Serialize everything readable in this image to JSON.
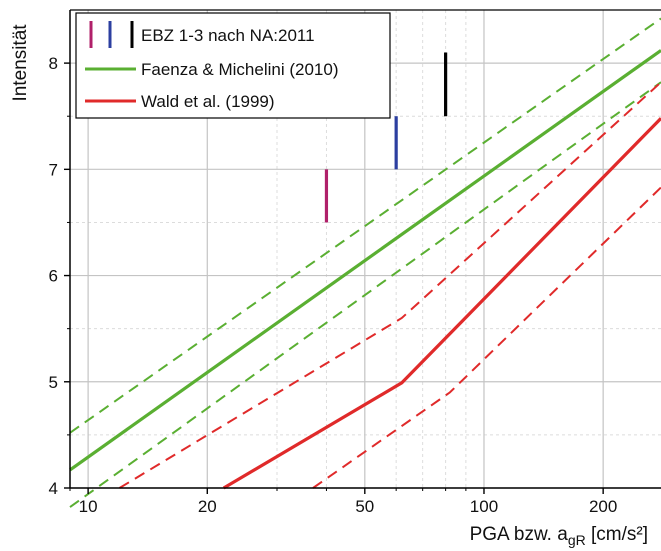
{
  "chart_data": {
    "type": "line",
    "xscale": "log",
    "xlim": [
      9,
      280
    ],
    "ylim": [
      4,
      8.5
    ],
    "xlabel": "PGA bzw. a",
    "xlabel_sub": "gR",
    "xlabel_unit": " [cm/s²]",
    "ylabel": "Intensität",
    "xticks": [
      10,
      20,
      50,
      100,
      200
    ],
    "xtick_labels": [
      "10",
      "20",
      "50",
      "100",
      "200"
    ],
    "yticks": [
      4,
      5,
      6,
      7,
      8
    ],
    "ytick_labels": [
      "4",
      "5",
      "6",
      "7",
      "8"
    ],
    "grid": true,
    "legend_position": "top-left",
    "legend": [
      {
        "label": "EBZ 1-3 nach NA:2011",
        "kind": "bars"
      },
      {
        "label": "Faenza & Michelini (2010)",
        "kind": "line",
        "color": "#5aaf32"
      },
      {
        "label": "Wald et al. (1999)",
        "kind": "line",
        "color": "#e02a2a"
      }
    ],
    "series": [
      {
        "name": "Faenza & Michelini (2010)",
        "color": "#5aaf32",
        "dash": false,
        "points": [
          [
            9,
            4.17
          ],
          [
            280,
            8.12
          ]
        ]
      },
      {
        "name": "",
        "color": "#5aaf32",
        "dash": true,
        "points": [
          [
            9,
            4.52
          ],
          [
            280,
            8.42
          ]
        ]
      },
      {
        "name": "",
        "color": "#5aaf32",
        "dash": true,
        "points": [
          [
            9,
            3.82
          ],
          [
            280,
            7.82
          ]
        ]
      },
      {
        "name": "Wald et al. (1999)",
        "color": "#e02a2a",
        "dash": false,
        "points": [
          [
            22,
            4.0
          ],
          [
            62,
            4.99
          ],
          [
            280,
            7.48
          ]
        ]
      },
      {
        "name": "",
        "color": "#e02a2a",
        "dash": true,
        "points": [
          [
            12,
            4.0
          ],
          [
            62,
            5.6
          ],
          [
            280,
            7.82
          ]
        ]
      },
      {
        "name": "",
        "color": "#e02a2a",
        "dash": true,
        "points": [
          [
            37,
            4.0
          ],
          [
            82,
            4.9
          ],
          [
            280,
            6.83
          ]
        ]
      }
    ],
    "bars": [
      {
        "name": "EBZ 1",
        "x": 40,
        "y_low": 6.5,
        "y_high": 7.0,
        "color": "#b0206a"
      },
      {
        "name": "EBZ 2",
        "x": 60,
        "y_low": 7.0,
        "y_high": 7.5,
        "color": "#2c3fa0"
      },
      {
        "name": "EBZ 3",
        "x": 80,
        "y_low": 7.5,
        "y_high": 8.1,
        "color": "#000000"
      }
    ]
  }
}
